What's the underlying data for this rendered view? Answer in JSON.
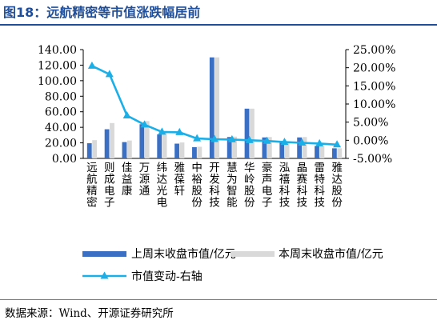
{
  "title": "图18：远航精密等市值涨跌幅居前",
  "source": "数据来源：Wind、开源证券研究所",
  "chart_data": {
    "type": "bar",
    "categories": [
      "远航精密",
      "则成电子",
      "佳益康",
      "万源通",
      "纬达光电",
      "雅葆轩",
      "中裕股份",
      "开发科技",
      "慧为智能",
      "华岭股份",
      "豪声电子",
      "泓禧科技",
      "晶赛科技",
      "雷特科技",
      "雅达股份"
    ],
    "series": [
      {
        "name": "上周末收盘市值/亿元",
        "axis": "left",
        "color": "#3A6FC4",
        "values": [
          19.5,
          37.5,
          21.0,
          44.0,
          31.0,
          19.0,
          14.5,
          130.0,
          27.5,
          64.0,
          27.0,
          22.0,
          27.0,
          16.0,
          13.0
        ]
      },
      {
        "name": "本周末收盘市值/亿元",
        "axis": "left",
        "color": "#D9D9D9",
        "values": [
          23.5,
          45.5,
          23.0,
          48.0,
          34.0,
          20.5,
          15.0,
          130.0,
          28.0,
          64.0,
          27.5,
          22.0,
          27.5,
          16.0,
          13.0
        ]
      },
      {
        "name": "市值变动-右轴",
        "axis": "right",
        "type": "line",
        "color": "#1BAFE8",
        "values": [
          20.5,
          18.2,
          6.8,
          4.3,
          2.3,
          2.2,
          0.5,
          0.3,
          0.2,
          0.0,
          -0.2,
          -0.5,
          -0.7,
          -0.9,
          -1.2
        ]
      }
    ],
    "y_left": {
      "ylim": [
        0,
        140
      ],
      "ticks": [
        "0.00",
        "20.00",
        "40.00",
        "60.00",
        "80.00",
        "100.00",
        "120.00",
        "140.00"
      ]
    },
    "y_right": {
      "ylim": [
        -5,
        25
      ],
      "ticks": [
        "-5.00%",
        "0.00%",
        "5.00%",
        "10.00%",
        "15.00%",
        "20.00%",
        "25.00%"
      ]
    },
    "legend_position": "bottom",
    "grid": false
  }
}
